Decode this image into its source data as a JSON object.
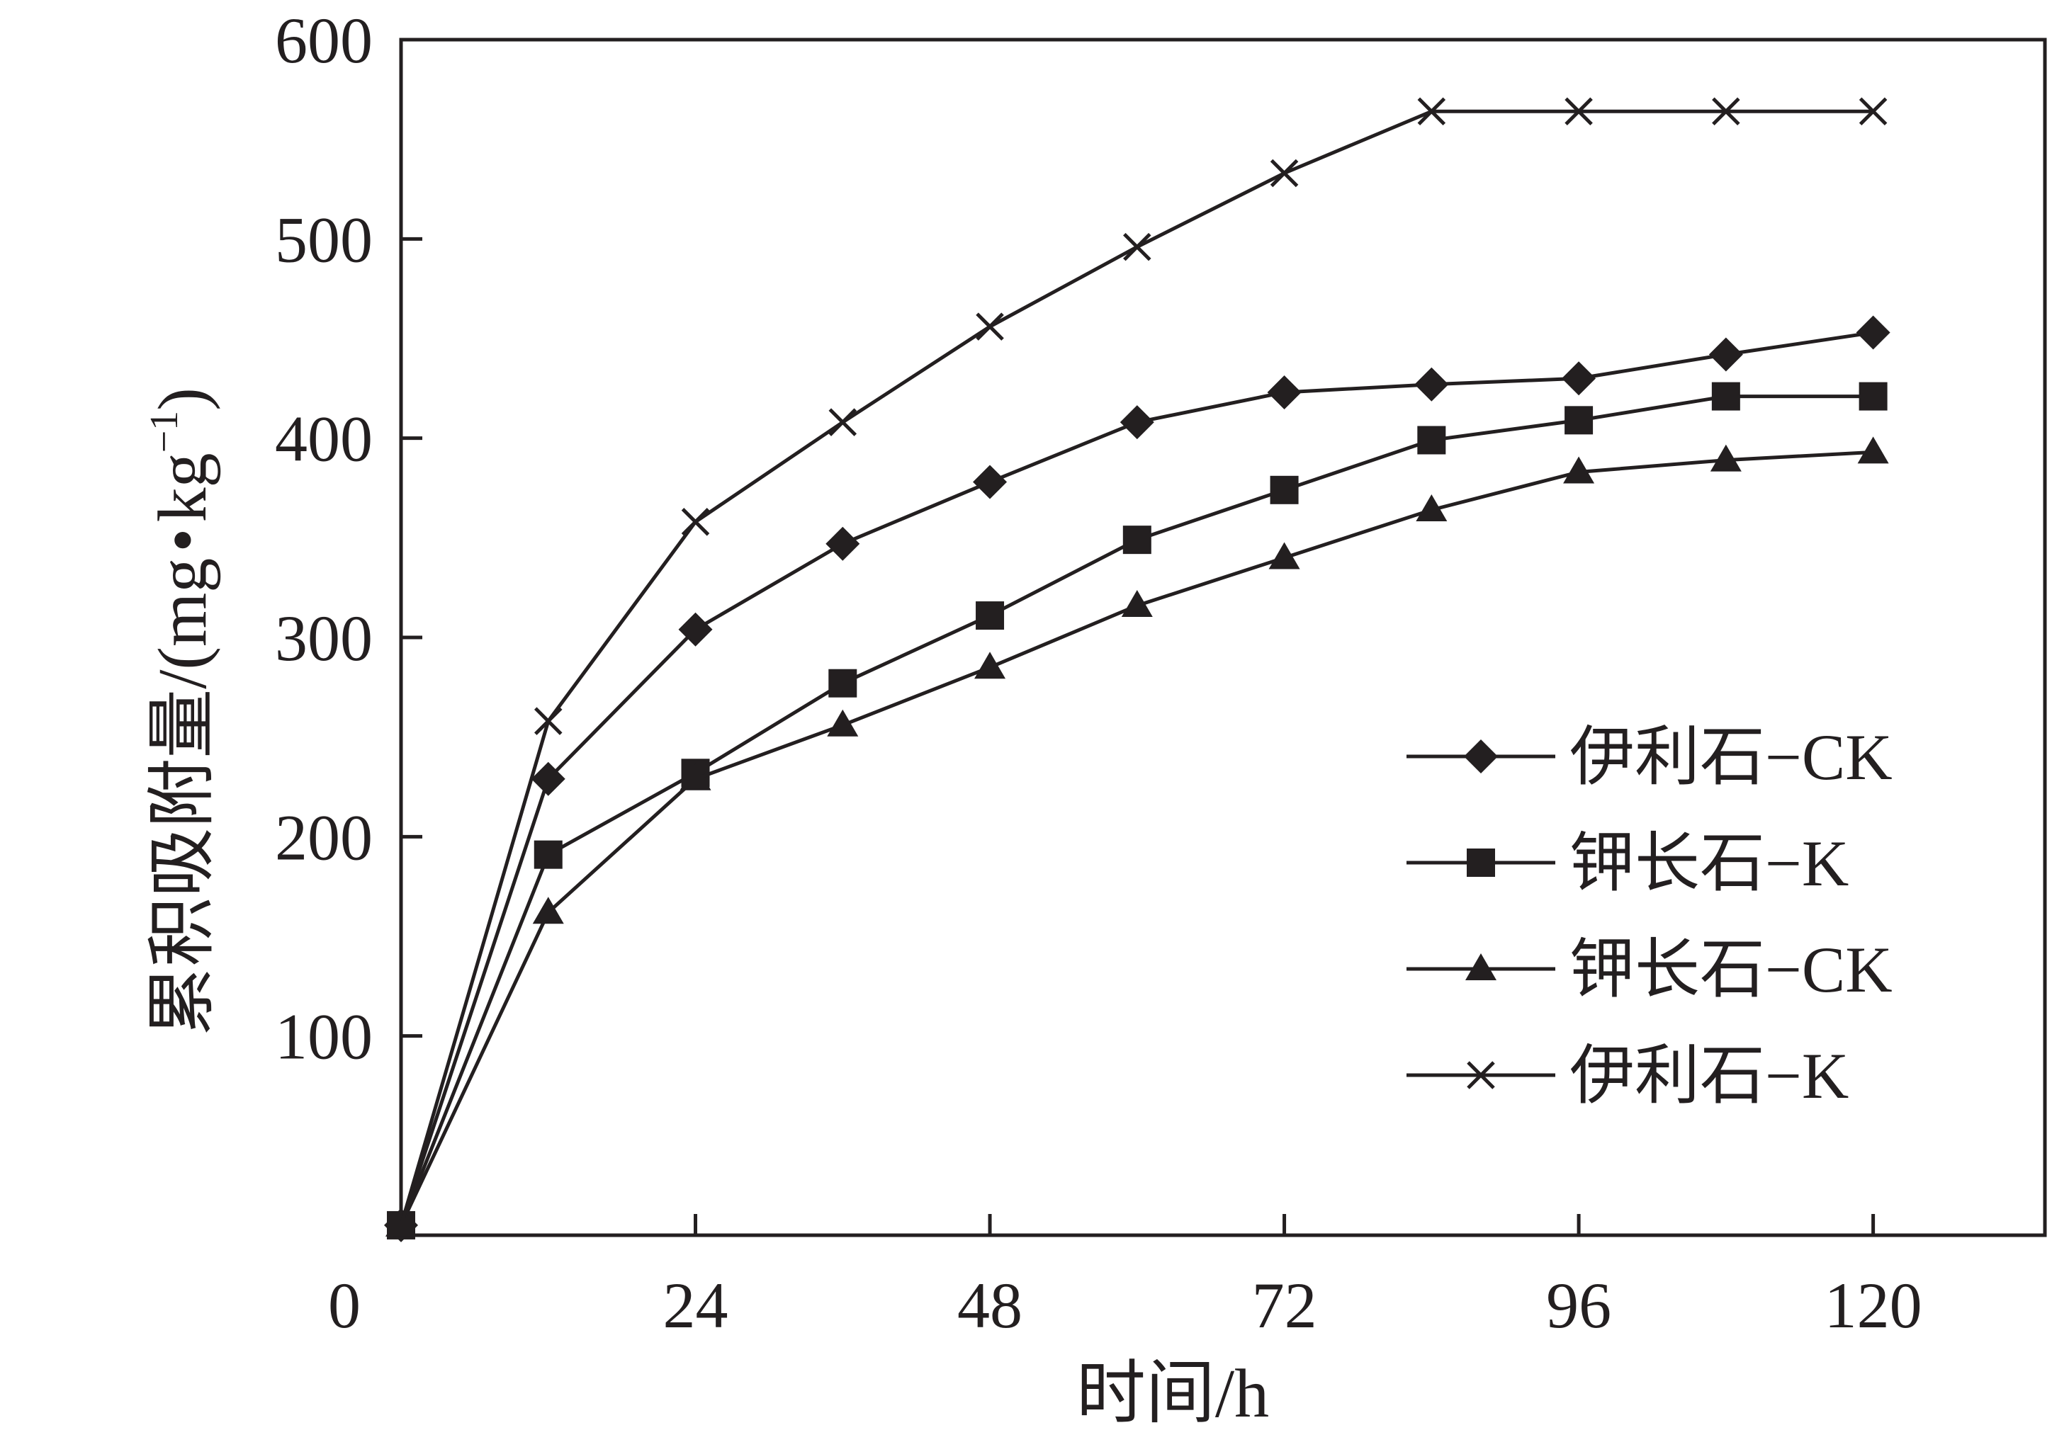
{
  "chart_data": {
    "type": "line",
    "xlabel": "时间/h",
    "ylabel_main": "累积吸附量/(mg",
    "ylabel_dot": "•",
    "ylabel_unit": "kg",
    "ylabel_sup": "−1",
    "ylabel_close": ")",
    "xlim": [
      0,
      134
    ],
    "ylim": [
      0,
      600
    ],
    "x_ticks": [
      0,
      24,
      48,
      72,
      96,
      120
    ],
    "x_tick_labels": [
      "0",
      "24",
      "48",
      "72",
      "96",
      "120"
    ],
    "y_ticks": [
      100,
      200,
      300,
      400,
      500,
      600
    ],
    "y_tick_labels": [
      "100",
      "200",
      "300",
      "400",
      "500",
      "600"
    ],
    "grid": false,
    "legend_position": "right-center",
    "x": [
      0,
      12,
      24,
      36,
      48,
      60,
      72,
      84,
      96,
      108,
      120
    ],
    "series": [
      {
        "name": "伊利石−CK",
        "marker": "diamond",
        "values": [
          5,
          229,
          304,
          347,
          378,
          408,
          423,
          427,
          430,
          442,
          453
        ]
      },
      {
        "name": "钾长石−K",
        "marker": "square",
        "values": [
          5,
          191,
          232,
          277,
          311,
          349,
          374,
          399,
          409,
          421,
          421
        ]
      },
      {
        "name": "钾长石−CK",
        "marker": "triangle",
        "values": [
          5,
          162,
          229,
          256,
          285,
          316,
          340,
          364,
          383,
          389,
          393
        ]
      },
      {
        "name": "伊利石−K",
        "marker": "cross",
        "values": [
          5,
          258,
          358,
          408,
          456,
          496,
          533,
          564,
          564,
          564,
          564
        ]
      }
    ],
    "colors": {
      "line": "#231f20",
      "axis": "#231f20"
    }
  }
}
